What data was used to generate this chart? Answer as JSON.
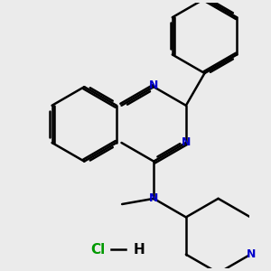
{
  "background_color": "#ebebeb",
  "bond_color": "#000000",
  "N_color": "#0000cc",
  "Cl_color": "#009900",
  "line_width": 1.8,
  "figsize": [
    3.0,
    3.0
  ],
  "dpi": 100,
  "xlim": [
    -2.5,
    3.5
  ],
  "ylim": [
    -3.8,
    3.2
  ]
}
